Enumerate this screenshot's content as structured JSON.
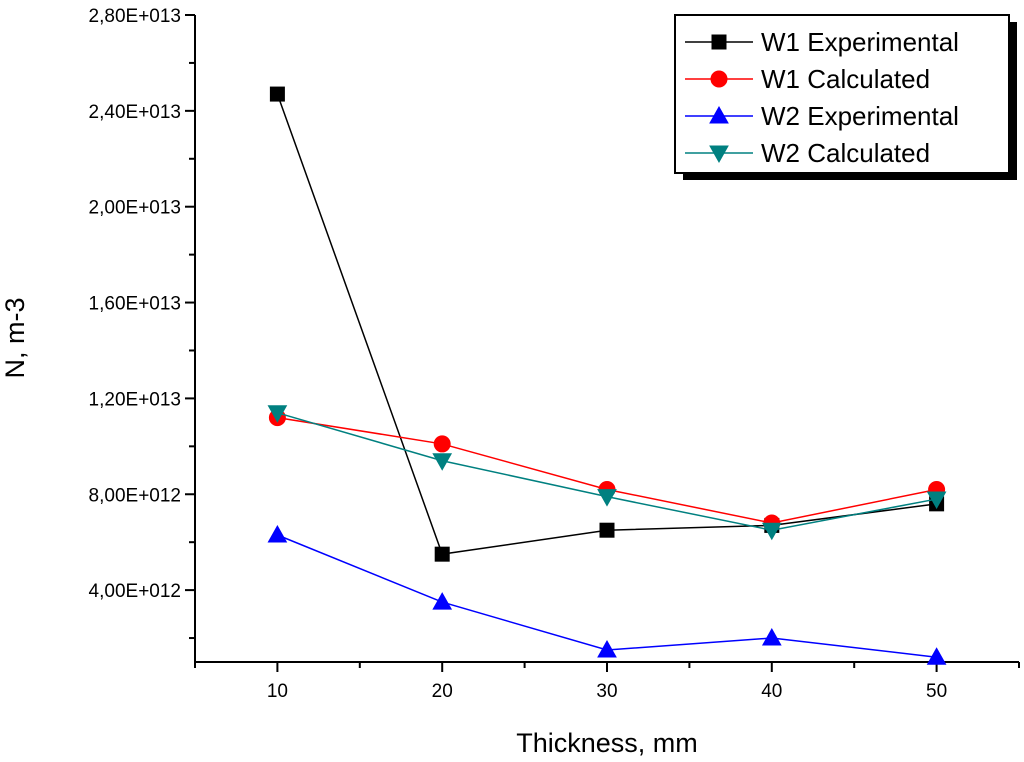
{
  "chart_data": {
    "type": "line",
    "title": "",
    "xlabel": "Thickness, mm",
    "ylabel": "N, m-3",
    "xlim": [
      5,
      55
    ],
    "ylim": [
      1000000000000.0,
      28000000000000.0
    ],
    "x": [
      10,
      20,
      30,
      40,
      50
    ],
    "x_ticks": [
      10,
      20,
      30,
      40,
      50
    ],
    "x_tick_labels": [
      "10",
      "20",
      "30",
      "40",
      "50"
    ],
    "y_ticks": [
      4000000000000.0,
      8000000000000.0,
      12000000000000.0,
      16000000000000.0,
      20000000000000.0,
      24000000000000.0,
      28000000000000.0
    ],
    "y_tick_labels": [
      "4,00E+012",
      "8,00E+012",
      "1,20E+013",
      "1,60E+013",
      "2,00E+013",
      "2,40E+013",
      "2,80E+013"
    ],
    "grid": false,
    "legend_position": "top-right",
    "series": [
      {
        "name": "W1 Experimental",
        "marker": "square",
        "color": "#000000",
        "values": [
          24700000000000.0,
          5500000000000.0,
          6500000000000.0,
          6700000000000.0,
          7600000000000.0
        ]
      },
      {
        "name": "W1 Calculated",
        "marker": "circle",
        "color": "#ff0000",
        "values": [
          11200000000000.0,
          10100000000000.0,
          8200000000000.0,
          6800000000000.0,
          8200000000000.0
        ]
      },
      {
        "name": "W2 Experimental",
        "marker": "triangle-up",
        "color": "#0000ff",
        "values": [
          6300000000000.0,
          3500000000000.0,
          1500000000000.0,
          2000000000000.0,
          1200000000000.0
        ]
      },
      {
        "name": "W2 Calculated",
        "marker": "triangle-down",
        "color": "#008080",
        "values": [
          11400000000000.0,
          9400000000000.0,
          7900000000000.0,
          6500000000000.0,
          7800000000000.0
        ]
      }
    ]
  }
}
